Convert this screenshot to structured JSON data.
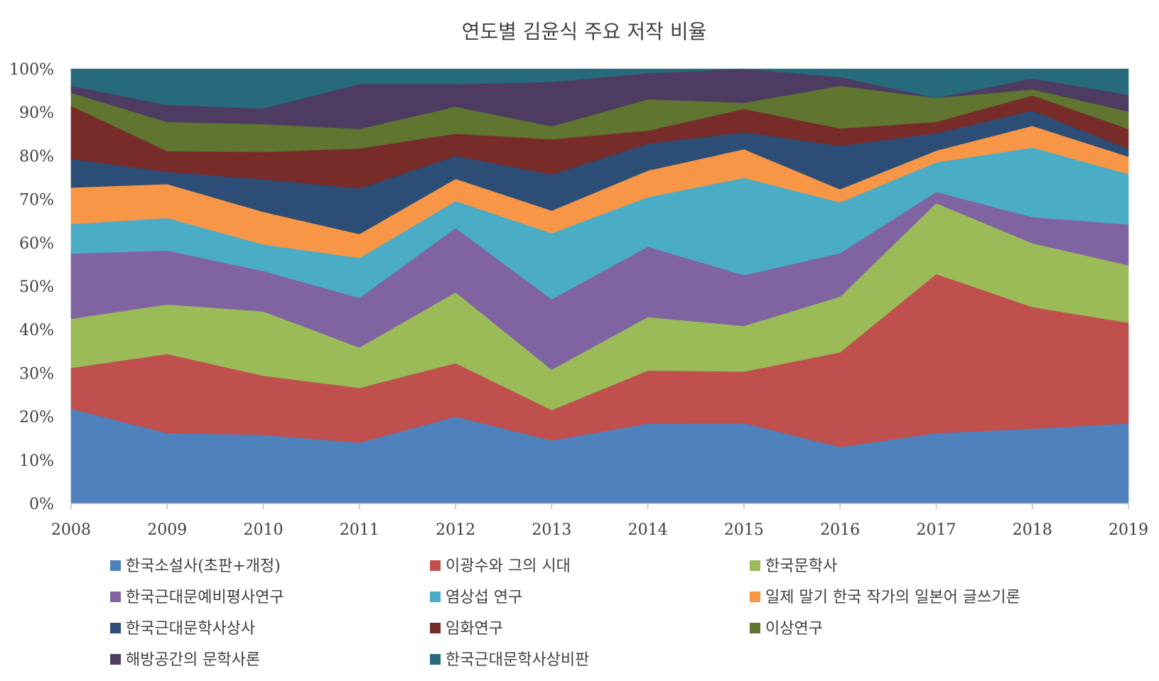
{
  "chart_data": {
    "type": "area",
    "stacked": "percent",
    "title": "연도별 김윤식 주요 저작 비율",
    "xlabel": "",
    "ylabel": "",
    "x": [
      "2008",
      "2009",
      "2010",
      "2011",
      "2012",
      "2013",
      "2014",
      "2015",
      "2016",
      "2017",
      "2018",
      "2019"
    ],
    "yticks": [
      "0%",
      "10%",
      "20%",
      "30%",
      "40%",
      "50%",
      "60%",
      "70%",
      "80%",
      "90%",
      "100%"
    ],
    "ylim": [
      0,
      100
    ],
    "grid": false,
    "legend_position": "bottom",
    "series": [
      {
        "name": "한국소설사(초판+개정)",
        "color": "#4F81BD",
        "values": [
          21.8,
          16.2,
          15.8,
          14.0,
          20.0,
          14.5,
          18.4,
          18.5,
          13.0,
          16.2,
          17.2,
          18.4
        ]
      },
      {
        "name": "이광수와 그의 시대",
        "color": "#C0504D",
        "values": [
          9.4,
          18.2,
          13.6,
          12.6,
          12.3,
          7.0,
          12.2,
          11.9,
          21.8,
          36.6,
          28.0,
          23.2
        ]
      },
      {
        "name": "한국문학사",
        "color": "#9BBB59",
        "values": [
          11.3,
          11.4,
          14.8,
          9.3,
          16.3,
          9.3,
          12.3,
          10.5,
          12.8,
          16.3,
          14.7,
          13.2
        ]
      },
      {
        "name": "한국근대문예비평사연구",
        "color": "#8064A2",
        "values": [
          15.0,
          12.4,
          9.3,
          11.4,
          14.8,
          16.2,
          16.2,
          11.7,
          10.0,
          2.6,
          6.0,
          9.4
        ]
      },
      {
        "name": "염상섭 연구",
        "color": "#4BACC6",
        "values": [
          6.8,
          7.5,
          6.1,
          9.2,
          6.2,
          15.2,
          11.4,
          22.4,
          11.7,
          6.8,
          16.0,
          11.6
        ]
      },
      {
        "name": "일제 말기 한국 작가의 일본어 글쓰기론",
        "color": "#F79646",
        "values": [
          8.4,
          7.8,
          7.5,
          5.5,
          5.1,
          5.2,
          6.1,
          6.6,
          3.0,
          2.7,
          5.0,
          4.0
        ]
      },
      {
        "name": "한국근대문학사상사",
        "color": "#2C4D75",
        "values": [
          6.6,
          2.8,
          7.5,
          10.5,
          5.3,
          8.3,
          6.2,
          3.9,
          10.0,
          4.0,
          3.5,
          1.8
        ]
      },
      {
        "name": "임화연구",
        "color": "#772C2A",
        "values": [
          12.2,
          4.8,
          6.3,
          9.2,
          5.1,
          8.1,
          3.0,
          5.4,
          4.0,
          2.6,
          3.5,
          4.6
        ]
      },
      {
        "name": "이상연구",
        "color": "#5F7530",
        "values": [
          3.0,
          6.7,
          6.4,
          4.5,
          6.2,
          3.0,
          7.2,
          1.4,
          9.8,
          5.5,
          1.4,
          4.0
        ]
      },
      {
        "name": "해방공간의 문학사론",
        "color": "#4D3B62",
        "values": [
          1.6,
          3.9,
          3.6,
          10.3,
          5.2,
          10.2,
          6.0,
          7.8,
          2.0,
          0.0,
          2.5,
          3.8
        ]
      },
      {
        "name": "한국근대문학사상비판",
        "color": "#276A7C",
        "values": [
          3.9,
          8.3,
          9.1,
          3.5,
          3.5,
          3.0,
          1.0,
          0.0,
          1.9,
          6.7,
          2.2,
          6.0
        ]
      }
    ]
  }
}
